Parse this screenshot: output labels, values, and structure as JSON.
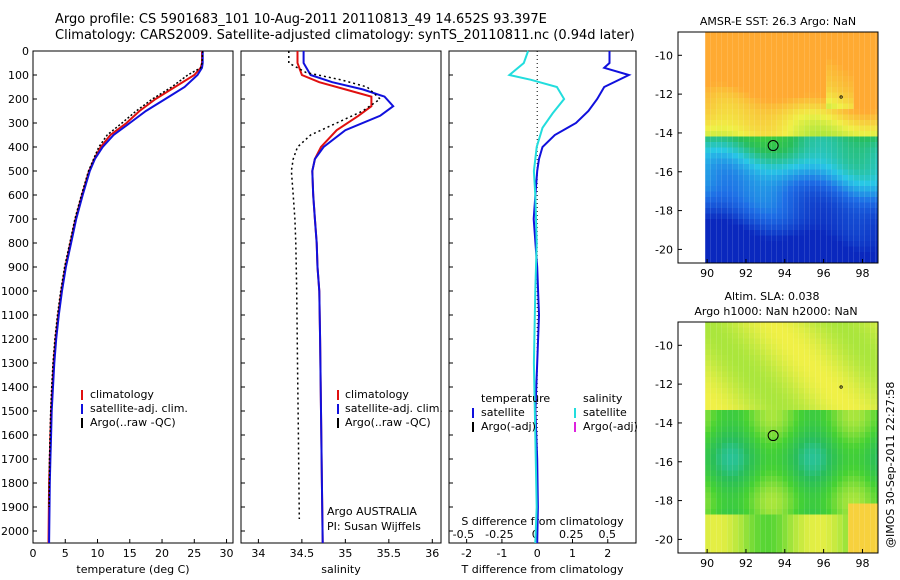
{
  "header": {
    "line1": "Argo profile: CS 5901683_101 10-Aug-2011 20110813_49 14.652S 93.397E",
    "line2": "Climatology: CARS2009. Satellite-adjusted climatology: synTS_20110811.nc (0.94d later)"
  },
  "credit": "@IMOS 30-Sep-2011 22:27:58",
  "colors": {
    "climatology": "#e01010",
    "satellite": "#1010dd",
    "argo": "#000000",
    "sal_satellite": "#22dddd",
    "sal_argo": "#dd22dd"
  },
  "chart_data": [
    {
      "type": "line",
      "panel": "temperature",
      "xlabel": "temperature (deg C)",
      "ylabel": "",
      "xlim": [
        0,
        31
      ],
      "ylim": [
        2050,
        0
      ],
      "xticks": [
        0,
        5,
        10,
        15,
        20,
        25,
        30
      ],
      "yticks": [
        0,
        100,
        200,
        300,
        400,
        500,
        600,
        700,
        800,
        900,
        1000,
        1100,
        1200,
        1300,
        1400,
        1500,
        1600,
        1700,
        1800,
        1900,
        2000
      ],
      "legend": [
        "climatology",
        "satellite-adj. clim.",
        "Argo(..raw -QC)"
      ],
      "series": [
        {
          "name": "climatology",
          "x": [
            26.2,
            26.2,
            26.0,
            25.0,
            22.0,
            19.0,
            16.5,
            14.5,
            12.0,
            10.5,
            9.5,
            8.7,
            7.6,
            6.6,
            5.8,
            5.0,
            4.4,
            3.9,
            3.5,
            3.2,
            3.0,
            2.8,
            2.7,
            2.6,
            2.5,
            2.4
          ],
          "y": [
            0,
            50,
            70,
            100,
            150,
            200,
            250,
            300,
            350,
            400,
            450,
            500,
            600,
            700,
            800,
            900,
            1000,
            1100,
            1200,
            1300,
            1400,
            1500,
            1600,
            1700,
            1800,
            2050
          ]
        },
        {
          "name": "satellite-adj. clim.",
          "x": [
            26.3,
            26.3,
            26.2,
            25.5,
            23.5,
            20.5,
            17.5,
            15.0,
            12.5,
            10.8,
            9.6,
            8.8,
            7.7,
            6.7,
            5.9,
            5.1,
            4.5,
            4.0,
            3.6,
            3.3,
            3.1,
            2.9,
            2.8,
            2.7,
            2.6,
            2.5
          ],
          "y": [
            0,
            50,
            70,
            100,
            150,
            200,
            250,
            300,
            350,
            400,
            450,
            500,
            600,
            700,
            800,
            900,
            1000,
            1100,
            1200,
            1300,
            1400,
            1500,
            1600,
            1700,
            1800,
            2050
          ]
        },
        {
          "name": "Argo(..raw -QC)",
          "x": [
            26.3,
            26.2,
            26.0,
            24.0,
            21.5,
            18.5,
            16.0,
            13.8,
            11.5,
            10.2,
            9.4,
            8.6,
            7.5,
            6.5,
            5.7,
            4.9,
            4.3,
            3.8,
            3.4,
            3.1,
            2.9,
            2.75,
            2.65,
            2.55,
            2.5
          ],
          "y": [
            0,
            50,
            70,
            100,
            150,
            200,
            250,
            300,
            350,
            400,
            450,
            500,
            600,
            700,
            800,
            900,
            1000,
            1100,
            1200,
            1300,
            1400,
            1500,
            1600,
            1700,
            1900
          ]
        }
      ]
    },
    {
      "type": "line",
      "panel": "salinity",
      "xlabel": "salinity",
      "xlim": [
        33.8,
        36.1
      ],
      "ylim": [
        2050,
        0
      ],
      "xticks": [
        34,
        34.5,
        35,
        35.5,
        36
      ],
      "legend": [
        "climatology",
        "satellite-adj. clim.",
        "Argo(..raw -QC)"
      ],
      "annotation": [
        "Argo AUSTRALIA",
        "PI: Susan Wijffels"
      ],
      "series": [
        {
          "name": "climatology",
          "x": [
            34.45,
            34.45,
            34.5,
            34.7,
            35.0,
            35.3,
            35.3,
            35.15,
            34.9,
            34.72,
            34.65,
            34.62,
            34.63,
            34.65,
            34.67,
            34.68,
            34.7,
            34.71,
            34.72,
            34.73,
            34.74
          ],
          "y": [
            0,
            50,
            100,
            130,
            160,
            190,
            230,
            270,
            330,
            400,
            450,
            500,
            600,
            700,
            800,
            900,
            1000,
            1200,
            1500,
            1800,
            2050
          ]
        },
        {
          "name": "satellite-adj. clim.",
          "x": [
            34.52,
            34.52,
            34.6,
            34.85,
            35.2,
            35.45,
            35.55,
            35.4,
            35.0,
            34.75,
            34.65,
            34.62,
            34.63,
            34.65,
            34.67,
            34.68,
            34.7,
            34.71,
            34.72,
            34.73,
            34.74
          ],
          "y": [
            0,
            50,
            100,
            130,
            160,
            190,
            230,
            270,
            330,
            400,
            450,
            500,
            600,
            700,
            800,
            900,
            1000,
            1200,
            1500,
            1800,
            2050
          ]
        },
        {
          "name": "Argo(..raw -QC)",
          "x": [
            34.35,
            34.35,
            34.55,
            34.95,
            35.25,
            35.4,
            35.2,
            34.9,
            34.6,
            34.45,
            34.4,
            34.38,
            34.4,
            34.42,
            34.43,
            34.44,
            34.45,
            34.46,
            34.47
          ],
          "y": [
            0,
            50,
            90,
            120,
            150,
            200,
            250,
            300,
            350,
            400,
            450,
            500,
            600,
            700,
            800,
            1000,
            1300,
            1600,
            1950
          ]
        }
      ]
    },
    {
      "type": "line",
      "panel": "difference",
      "xlabel": "T difference from climatology",
      "xlabel_top": "S difference from climatology",
      "xlim": [
        -2.5,
        2.8
      ],
      "xlim_s": [
        -0.6,
        0.7
      ],
      "ylim": [
        2050,
        0
      ],
      "xticks": [
        -2,
        -1,
        0,
        1,
        2
      ],
      "xticks_s": [
        -0.5,
        -0.25,
        0,
        0.25,
        0.5
      ],
      "legend_headers": [
        "temperature",
        "salinity"
      ],
      "legend": [
        "satellite",
        "Argo(-adj)",
        "satellite",
        "Argo(-adj)"
      ],
      "series": [
        {
          "name": "satellite",
          "x": [
            2.05,
            2.05,
            1.9,
            2.6,
            1.9,
            1.7,
            1.45,
            1.1,
            0.5,
            0.15,
            0.05,
            0.0,
            -0.05,
            -0.1,
            0.0,
            0.05,
            0.0,
            -0.05,
            0.0,
            0.02,
            0.0
          ],
          "y": [
            0,
            50,
            70,
            100,
            150,
            200,
            250,
            300,
            350,
            400,
            450,
            500,
            600,
            700,
            900,
            1100,
            1300,
            1500,
            1700,
            1900,
            2050
          ]
        },
        {
          "name": "salinity satellite",
          "x": [
            -0.05,
            -0.08,
            -0.18,
            -0.03,
            0.15,
            0.2,
            0.12,
            0.05,
            0.01,
            0.0,
            -0.01,
            0.0,
            0.01,
            0.0,
            -0.01,
            0.0,
            0.01,
            0.0
          ],
          "y": [
            0,
            50,
            100,
            120,
            150,
            200,
            260,
            320,
            400,
            450,
            500,
            600,
            800,
            1000,
            1300,
            1600,
            1900,
            2050
          ]
        }
      ]
    },
    {
      "type": "heatmap",
      "panel": "sst_map",
      "title": "AMSR-E SST: 26.3 Argo: NaN",
      "xlim": [
        88.5,
        98.8
      ],
      "ylim": [
        -20.7,
        -8.8
      ],
      "xticks": [
        90,
        92,
        94,
        96,
        98
      ],
      "yticks": [
        -10,
        -12,
        -14,
        -16,
        -18,
        -20
      ],
      "marker": {
        "lon": 93.4,
        "lat": -14.65
      },
      "marker2": {
        "lon": 96.9,
        "lat": -12.15
      }
    },
    {
      "type": "heatmap",
      "panel": "sla_map",
      "title": "Altim. SLA: 0.038",
      "subtitle": "Argo h1000: NaN h2000: NaN",
      "xlim": [
        88.5,
        98.8
      ],
      "ylim": [
        -20.7,
        -8.8
      ],
      "xticks": [
        90,
        92,
        94,
        96,
        98
      ],
      "yticks": [
        -10,
        -12,
        -14,
        -16,
        -18,
        -20
      ],
      "marker": {
        "lon": 93.4,
        "lat": -14.65
      },
      "marker2": {
        "lon": 96.9,
        "lat": -12.15
      }
    }
  ]
}
